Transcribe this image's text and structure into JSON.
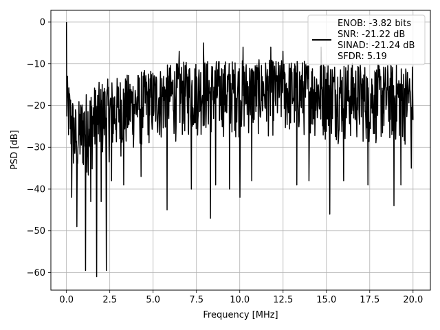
{
  "chart_data": {
    "type": "line",
    "title": "",
    "xlabel": "Frequency [MHz]",
    "ylabel": "PSD [dB]",
    "xlim": [
      -0.9,
      21.0
    ],
    "ylim": [
      -64.2,
      2.8
    ],
    "grid": true,
    "legend_placement": "top-right",
    "line_color": "#000000",
    "x_ticks": [
      0.0,
      2.5,
      5.0,
      7.5,
      10.0,
      12.5,
      15.0,
      17.5,
      20.0
    ],
    "x_tick_labels": [
      "0.0",
      "2.5",
      "5.0",
      "7.5",
      "10.0",
      "12.5",
      "15.0",
      "17.5",
      "20.0"
    ],
    "y_ticks": [
      0,
      -10,
      -20,
      -30,
      -40,
      -50,
      -60
    ],
    "y_tick_labels": [
      "0",
      "−10",
      "−20",
      "−30",
      "−40",
      "−50",
      "−60"
    ],
    "legend": {
      "lines": [
        "ENOB: -3.82 bits",
        "SNR: -21.22 dB",
        "SINAD: -21.24 dB",
        "SFDR: 5.19"
      ]
    },
    "series": [
      {
        "x_start": 0.0,
        "x_end": 20.0,
        "n_points": 1000,
        "values_note": "dense noise spectrum",
        "peak": {
          "x": 0.0,
          "y": 0.0
        },
        "upper_envelope": [
          [
            0.0,
            -12
          ],
          [
            0.5,
            -20
          ],
          [
            1.0,
            -17
          ],
          [
            2.0,
            -14
          ],
          [
            3.0,
            -13
          ],
          [
            4.0,
            -12
          ],
          [
            5.0,
            -11
          ],
          [
            6.0,
            -10
          ],
          [
            7.5,
            -9
          ],
          [
            10.0,
            -9
          ],
          [
            12.5,
            -9
          ],
          [
            15.0,
            -9
          ],
          [
            17.5,
            -10
          ],
          [
            20.0,
            -10
          ]
        ],
        "lower_envelope": [
          [
            0.0,
            -30
          ],
          [
            0.5,
            -40
          ],
          [
            1.0,
            -38
          ],
          [
            2.0,
            -35
          ],
          [
            3.0,
            -33
          ],
          [
            5.0,
            -30
          ],
          [
            7.5,
            -28
          ],
          [
            10.0,
            -28
          ],
          [
            12.5,
            -28
          ],
          [
            15.0,
            -29
          ],
          [
            17.5,
            -30
          ],
          [
            20.0,
            -30
          ]
        ],
        "notable_dips": [
          {
            "x": 0.3,
            "y": -42
          },
          {
            "x": 0.6,
            "y": -49
          },
          {
            "x": 1.1,
            "y": -59.5
          },
          {
            "x": 1.4,
            "y": -43
          },
          {
            "x": 1.75,
            "y": -61
          },
          {
            "x": 2.0,
            "y": -43
          },
          {
            "x": 2.3,
            "y": -59.5
          },
          {
            "x": 2.6,
            "y": -38
          },
          {
            "x": 3.3,
            "y": -39
          },
          {
            "x": 4.3,
            "y": -37
          },
          {
            "x": 5.8,
            "y": -45
          },
          {
            "x": 6.5,
            "y": -39
          },
          {
            "x": 7.2,
            "y": -40
          },
          {
            "x": 8.3,
            "y": -47
          },
          {
            "x": 8.6,
            "y": -39
          },
          {
            "x": 9.4,
            "y": -40
          },
          {
            "x": 10.0,
            "y": -42
          },
          {
            "x": 10.7,
            "y": -38
          },
          {
            "x": 11.8,
            "y": -39
          },
          {
            "x": 13.3,
            "y": -39
          },
          {
            "x": 14.0,
            "y": -38
          },
          {
            "x": 15.2,
            "y": -46
          },
          {
            "x": 16.0,
            "y": -38
          },
          {
            "x": 17.4,
            "y": -39
          },
          {
            "x": 18.9,
            "y": -44
          },
          {
            "x": 19.3,
            "y": -39
          },
          {
            "x": 19.9,
            "y": -35
          }
        ],
        "notable_peaks": [
          {
            "x": 6.5,
            "y": -7
          },
          {
            "x": 7.9,
            "y": -5
          },
          {
            "x": 10.2,
            "y": -6
          },
          {
            "x": 11.8,
            "y": -6
          },
          {
            "x": 12.5,
            "y": -7
          },
          {
            "x": 14.7,
            "y": -6
          }
        ]
      }
    ]
  }
}
